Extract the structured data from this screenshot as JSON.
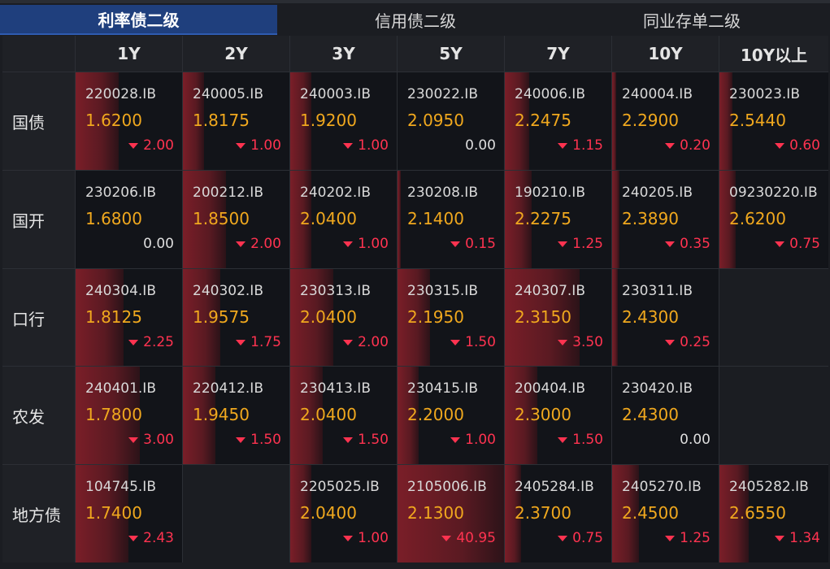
{
  "tabs": [
    {
      "label": "利率债二级",
      "active": true
    },
    {
      "label": "信用债二级",
      "active": false
    },
    {
      "label": "同业存单二级",
      "active": false
    }
  ],
  "columns": [
    "1Y",
    "2Y",
    "3Y",
    "5Y",
    "7Y",
    "10Y",
    "10Y以上"
  ],
  "colors": {
    "accent_tab": "#1f3f7d",
    "yield": "#f0a81e",
    "down": "#ff3350",
    "bar": "#7a1e28"
  },
  "rows": [
    {
      "label": "国债",
      "cells": [
        {
          "code": "220028.IB",
          "yield": "1.6200",
          "change": "2.00",
          "dir": "down",
          "level": 0.4
        },
        {
          "code": "240005.IB",
          "yield": "1.8175",
          "change": "1.00",
          "dir": "down",
          "level": 0.2
        },
        {
          "code": "240003.IB",
          "yield": "1.9200",
          "change": "1.00",
          "dir": "down",
          "level": 0.2
        },
        {
          "code": "230022.IB",
          "yield": "2.0950",
          "change": "0.00",
          "dir": "flat",
          "level": 0.0
        },
        {
          "code": "240006.IB",
          "yield": "2.2475",
          "change": "1.15",
          "dir": "down",
          "level": 0.23
        },
        {
          "code": "240004.IB",
          "yield": "2.2900",
          "change": "0.20",
          "dir": "down",
          "level": 0.04
        },
        {
          "code": "230023.IB",
          "yield": "2.5440",
          "change": "0.60",
          "dir": "down",
          "level": 0.12
        }
      ]
    },
    {
      "label": "国开",
      "cells": [
        {
          "code": "230206.IB",
          "yield": "1.6800",
          "change": "0.00",
          "dir": "flat",
          "level": 0.0
        },
        {
          "code": "200212.IB",
          "yield": "1.8500",
          "change": "2.00",
          "dir": "down",
          "level": 0.4
        },
        {
          "code": "240202.IB",
          "yield": "2.0400",
          "change": "1.00",
          "dir": "down",
          "level": 0.2
        },
        {
          "code": "230208.IB",
          "yield": "2.1400",
          "change": "0.15",
          "dir": "down",
          "level": 0.03
        },
        {
          "code": "190210.IB",
          "yield": "2.2275",
          "change": "1.25",
          "dir": "down",
          "level": 0.25
        },
        {
          "code": "240205.IB",
          "yield": "2.3890",
          "change": "0.35",
          "dir": "down",
          "level": 0.07
        },
        {
          "code": "09230220.IB",
          "yield": "2.6200",
          "change": "0.75",
          "dir": "down",
          "level": 0.15
        }
      ]
    },
    {
      "label": "口行",
      "cells": [
        {
          "code": "240304.IB",
          "yield": "1.8125",
          "change": "2.25",
          "dir": "down",
          "level": 0.45
        },
        {
          "code": "240302.IB",
          "yield": "1.9575",
          "change": "1.75",
          "dir": "down",
          "level": 0.35
        },
        {
          "code": "230313.IB",
          "yield": "2.0400",
          "change": "2.00",
          "dir": "down",
          "level": 0.4
        },
        {
          "code": "230315.IB",
          "yield": "2.1950",
          "change": "1.50",
          "dir": "down",
          "level": 0.3
        },
        {
          "code": "240307.IB",
          "yield": "2.3150",
          "change": "3.50",
          "dir": "down",
          "level": 0.7
        },
        {
          "code": "230311.IB",
          "yield": "2.4300",
          "change": "0.25",
          "dir": "down",
          "level": 0.05
        },
        null
      ]
    },
    {
      "label": "农发",
      "cells": [
        {
          "code": "240401.IB",
          "yield": "1.7800",
          "change": "3.00",
          "dir": "down",
          "level": 0.6
        },
        {
          "code": "220412.IB",
          "yield": "1.9450",
          "change": "1.50",
          "dir": "down",
          "level": 0.3
        },
        {
          "code": "230413.IB",
          "yield": "2.0400",
          "change": "1.50",
          "dir": "down",
          "level": 0.3
        },
        {
          "code": "230415.IB",
          "yield": "2.2000",
          "change": "1.00",
          "dir": "down",
          "level": 0.2
        },
        {
          "code": "200404.IB",
          "yield": "2.3000",
          "change": "1.50",
          "dir": "down",
          "level": 0.3
        },
        {
          "code": "230420.IB",
          "yield": "2.4300",
          "change": "0.00",
          "dir": "flat",
          "level": 0.0
        },
        null
      ]
    },
    {
      "label": "地方债",
      "cells": [
        {
          "code": "104745.IB",
          "yield": "1.7400",
          "change": "2.43",
          "dir": "down",
          "level": 0.49
        },
        null,
        {
          "code": "2205025.IB",
          "yield": "2.0400",
          "change": "1.00",
          "dir": "down",
          "level": 0.2
        },
        {
          "code": "2105006.IB",
          "yield": "2.1300",
          "change": "40.95",
          "dir": "down",
          "level": 1.0
        },
        {
          "code": "2405284.IB",
          "yield": "2.3700",
          "change": "0.75",
          "dir": "down",
          "level": 0.15
        },
        {
          "code": "2405270.IB",
          "yield": "2.4500",
          "change": "1.25",
          "dir": "down",
          "level": 0.25
        },
        {
          "code": "2405282.IB",
          "yield": "2.6550",
          "change": "1.34",
          "dir": "down",
          "level": 0.27
        }
      ]
    }
  ]
}
